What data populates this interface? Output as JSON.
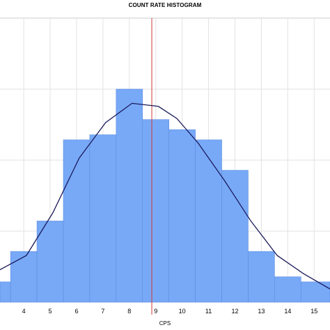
{
  "chart_data": {
    "type": "bar",
    "title": "COUNT RATE HISTOGRAM",
    "xlabel": "CPS",
    "ylabel": "",
    "xlim": [
      3.1,
      15.6
    ],
    "ylim": [
      0,
      28
    ],
    "x_ticks": [
      "4",
      "5",
      "6",
      "7",
      "8",
      "9",
      "10",
      "11",
      "12",
      "13",
      "14",
      "15"
    ],
    "grid": true,
    "bins": {
      "edges": [
        3.1,
        3.5,
        4.5,
        5.5,
        6.5,
        7.5,
        8.5,
        9.5,
        10.5,
        11.5,
        12.5,
        13.5,
        14.5,
        15.6
      ],
      "values": [
        2,
        5,
        8,
        16,
        16.5,
        21,
        18,
        17,
        16,
        13,
        5,
        2.5,
        2
      ]
    },
    "fit_curve": {
      "x": [
        3.1,
        4.1,
        5.1,
        6.1,
        7.1,
        8.1,
        9.1,
        9.8,
        10.6,
        11.6,
        12.6,
        13.6,
        14.6,
        15.6
      ],
      "y": [
        3.2,
        4.6,
        8.8,
        14.2,
        17.7,
        19.6,
        19.3,
        18.1,
        15.7,
        12.0,
        8.0,
        4.6,
        2.8,
        1.3
      ]
    },
    "mean_line": 8.85,
    "colors": {
      "bar_fill": "#78A9F7",
      "bar_edge": "#5C8EE0",
      "curve": "#1A1A5C",
      "mean_line": "#D23A3A",
      "grid": "#E2E2E2"
    }
  }
}
